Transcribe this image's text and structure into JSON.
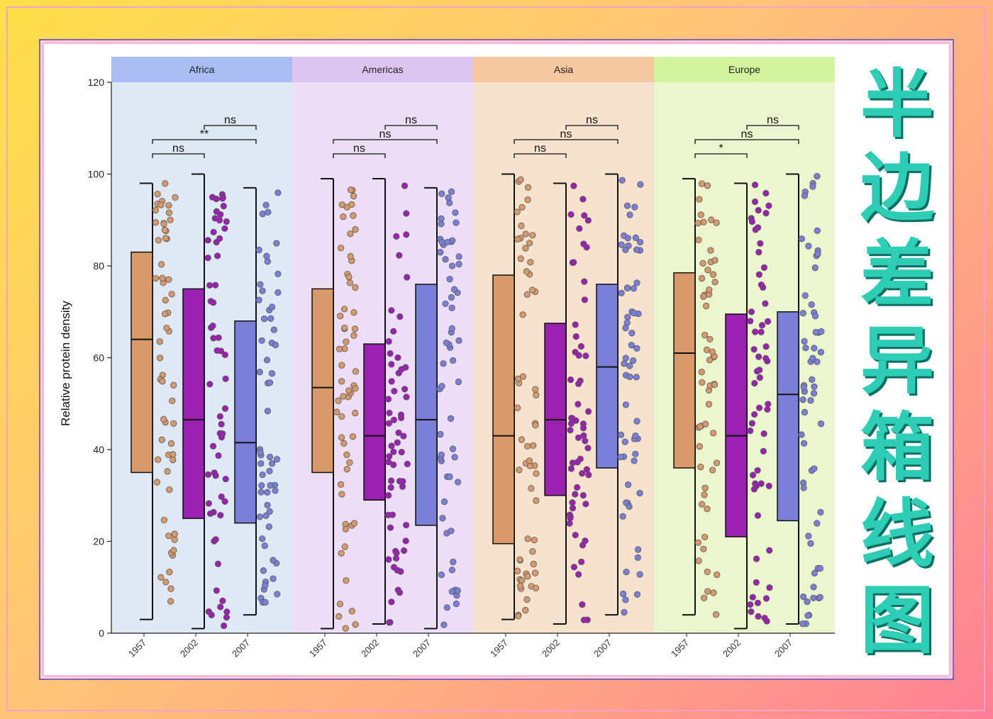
{
  "title_chars": [
    "半",
    "边",
    "差",
    "异",
    "箱",
    "线",
    "图"
  ],
  "colors": {
    "1957": "#d89a6a",
    "2002": "#9b22b0",
    "2007": "#7a80d8",
    "strip_africa": "#a9bdf2",
    "strip_americas": "#dcc5ef",
    "strip_asia": "#f5c8a0",
    "strip_europe": "#d2f39c",
    "bg_africa": "#dfe9f6",
    "bg_americas": "#ecdff5",
    "bg_asia": "#f5e2cf",
    "bg_europe": "#ebf5ce"
  },
  "chart_data": {
    "type": "boxplot",
    "subtype": "half-boxplot with jittered points",
    "ylabel": "Relative protein density",
    "xlabel": "",
    "ylim": [
      0,
      120
    ],
    "yticks": [
      0,
      20,
      40,
      60,
      80,
      100,
      120
    ],
    "categories": [
      "1957",
      "2002",
      "2007"
    ],
    "grid": false,
    "facets": [
      {
        "name": "Africa",
        "boxes": [
          {
            "category": "1957",
            "min": 3,
            "q1": 35,
            "median": 64,
            "q3": 83,
            "max": 98
          },
          {
            "category": "2002",
            "min": 1,
            "q1": 25,
            "median": 46.5,
            "q3": 75,
            "max": 100
          },
          {
            "category": "2007",
            "min": 4,
            "q1": 24,
            "median": 41.5,
            "q3": 68,
            "max": 97
          }
        ],
        "comparisons": [
          {
            "pair": [
              "1957",
              "2002"
            ],
            "label": "ns"
          },
          {
            "pair": [
              "1957",
              "2007"
            ],
            "label": "**"
          },
          {
            "pair": [
              "2002",
              "2007"
            ],
            "label": "ns"
          }
        ]
      },
      {
        "name": "Americas",
        "boxes": [
          {
            "category": "1957",
            "min": 1,
            "q1": 35,
            "median": 53.5,
            "q3": 75,
            "max": 99
          },
          {
            "category": "2002",
            "min": 2,
            "q1": 29,
            "median": 43,
            "q3": 63,
            "max": 99
          },
          {
            "category": "2007",
            "min": 1,
            "q1": 23.5,
            "median": 46.5,
            "q3": 76,
            "max": 97
          }
        ],
        "comparisons": [
          {
            "pair": [
              "1957",
              "2002"
            ],
            "label": "ns"
          },
          {
            "pair": [
              "1957",
              "2007"
            ],
            "label": "ns"
          },
          {
            "pair": [
              "2002",
              "2007"
            ],
            "label": "ns"
          }
        ]
      },
      {
        "name": "Asia",
        "boxes": [
          {
            "category": "1957",
            "min": 3,
            "q1": 19.5,
            "median": 43,
            "q3": 78,
            "max": 100
          },
          {
            "category": "2002",
            "min": 2,
            "q1": 30,
            "median": 46.5,
            "q3": 67.5,
            "max": 98
          },
          {
            "category": "2007",
            "min": 4,
            "q1": 36,
            "median": 58,
            "q3": 76,
            "max": 100
          }
        ],
        "comparisons": [
          {
            "pair": [
              "1957",
              "2002"
            ],
            "label": "ns"
          },
          {
            "pair": [
              "1957",
              "2007"
            ],
            "label": "ns"
          },
          {
            "pair": [
              "2002",
              "2007"
            ],
            "label": "ns"
          }
        ]
      },
      {
        "name": "Europe",
        "boxes": [
          {
            "category": "1957",
            "min": 4,
            "q1": 36,
            "median": 61,
            "q3": 78.5,
            "max": 99
          },
          {
            "category": "2002",
            "min": 1,
            "q1": 21,
            "median": 43,
            "q3": 69.5,
            "max": 98
          },
          {
            "category": "2007",
            "min": 2,
            "q1": 24.5,
            "median": 52,
            "q3": 70,
            "max": 100
          }
        ],
        "comparisons": [
          {
            "pair": [
              "1957",
              "2002"
            ],
            "label": "*"
          },
          {
            "pair": [
              "1957",
              "2007"
            ],
            "label": "ns"
          },
          {
            "pair": [
              "2002",
              "2007"
            ],
            "label": "ns"
          }
        ]
      }
    ],
    "points_per_box": 60
  }
}
